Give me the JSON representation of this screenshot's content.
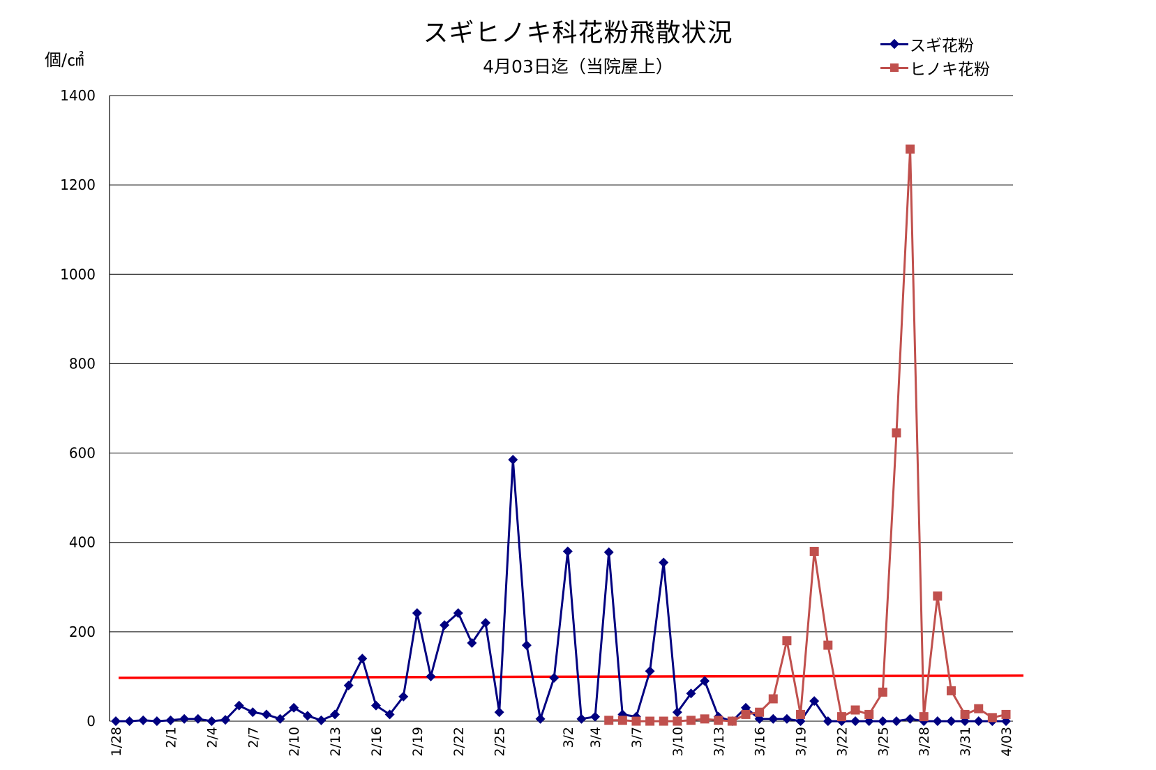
{
  "chart_data": {
    "type": "line",
    "title": "スギヒノキ科花粉飛散状況",
    "subtitle": "4月03日迄（当院屋上）",
    "ylabel": "個/㎠",
    "xlabel": "",
    "ylim": [
      0,
      1400
    ],
    "yticks": [
      0,
      200,
      400,
      600,
      800,
      1000,
      1200,
      1400
    ],
    "grid": "horizontal",
    "legend_position": "top-right",
    "x": [
      "1/28",
      "1/29",
      "1/30",
      "1/31",
      "2/1",
      "2/2",
      "2/3",
      "2/4",
      "2/5",
      "2/6",
      "2/7",
      "2/8",
      "2/9",
      "2/10",
      "2/11",
      "2/12",
      "2/13",
      "2/14",
      "2/15",
      "2/16",
      "2/17",
      "2/18",
      "2/19",
      "2/20",
      "2/21",
      "2/22",
      "2/23",
      "2/24",
      "2/25",
      "2/26",
      "2/27",
      "2/28",
      "3/1",
      "3/2",
      "3/3",
      "3/4",
      "3/5",
      "3/6",
      "3/7",
      "3/8",
      "3/9",
      "3/10",
      "3/11",
      "3/12",
      "3/13",
      "3/14",
      "3/15",
      "3/16",
      "3/17",
      "3/18",
      "3/19",
      "3/20",
      "3/21",
      "3/22",
      "3/23",
      "3/24",
      "3/25",
      "3/26",
      "3/27",
      "3/28",
      "3/29",
      "3/30",
      "3/31",
      "4/01",
      "4/02",
      "4/03"
    ],
    "x_tick_labels": [
      "1/28",
      "2/1",
      "2/4",
      "2/7",
      "2/10",
      "2/13",
      "2/16",
      "2/19",
      "2/22",
      "2/25",
      "3/2",
      "3/4",
      "3/7",
      "3/10",
      "3/13",
      "3/16",
      "3/19",
      "3/22",
      "3/25",
      "3/28",
      "3/31",
      "4/03"
    ],
    "series": [
      {
        "name": "スギ花粉",
        "color": "#000080",
        "marker": "diamond",
        "values": [
          0,
          0,
          2,
          0,
          2,
          5,
          5,
          0,
          3,
          35,
          20,
          15,
          5,
          30,
          12,
          2,
          15,
          80,
          140,
          35,
          15,
          55,
          242,
          100,
          215,
          242,
          175,
          220,
          20,
          585,
          170,
          5,
          97,
          380,
          5,
          10,
          378,
          15,
          10,
          112,
          355,
          20,
          62,
          90,
          10,
          0,
          30,
          5,
          5,
          5,
          0,
          45,
          0,
          0,
          0,
          0,
          0,
          0,
          5,
          0,
          0,
          0,
          0,
          0,
          0,
          0
        ]
      },
      {
        "name": "ヒノキ花粉",
        "color": "#C0504D",
        "marker": "square",
        "values": [
          null,
          null,
          null,
          null,
          null,
          null,
          null,
          null,
          null,
          null,
          null,
          null,
          null,
          null,
          null,
          null,
          null,
          null,
          null,
          null,
          null,
          null,
          null,
          null,
          null,
          null,
          null,
          null,
          null,
          null,
          null,
          null,
          null,
          null,
          null,
          null,
          2,
          2,
          0,
          0,
          0,
          0,
          2,
          5,
          2,
          0,
          15,
          20,
          50,
          180,
          15,
          380,
          170,
          10,
          25,
          15,
          65,
          645,
          1280,
          10,
          280,
          68,
          15,
          28,
          8,
          15
        ]
      }
    ],
    "reference_line": {
      "color": "#FF0000",
      "values": [
        97,
        102
      ]
    }
  }
}
